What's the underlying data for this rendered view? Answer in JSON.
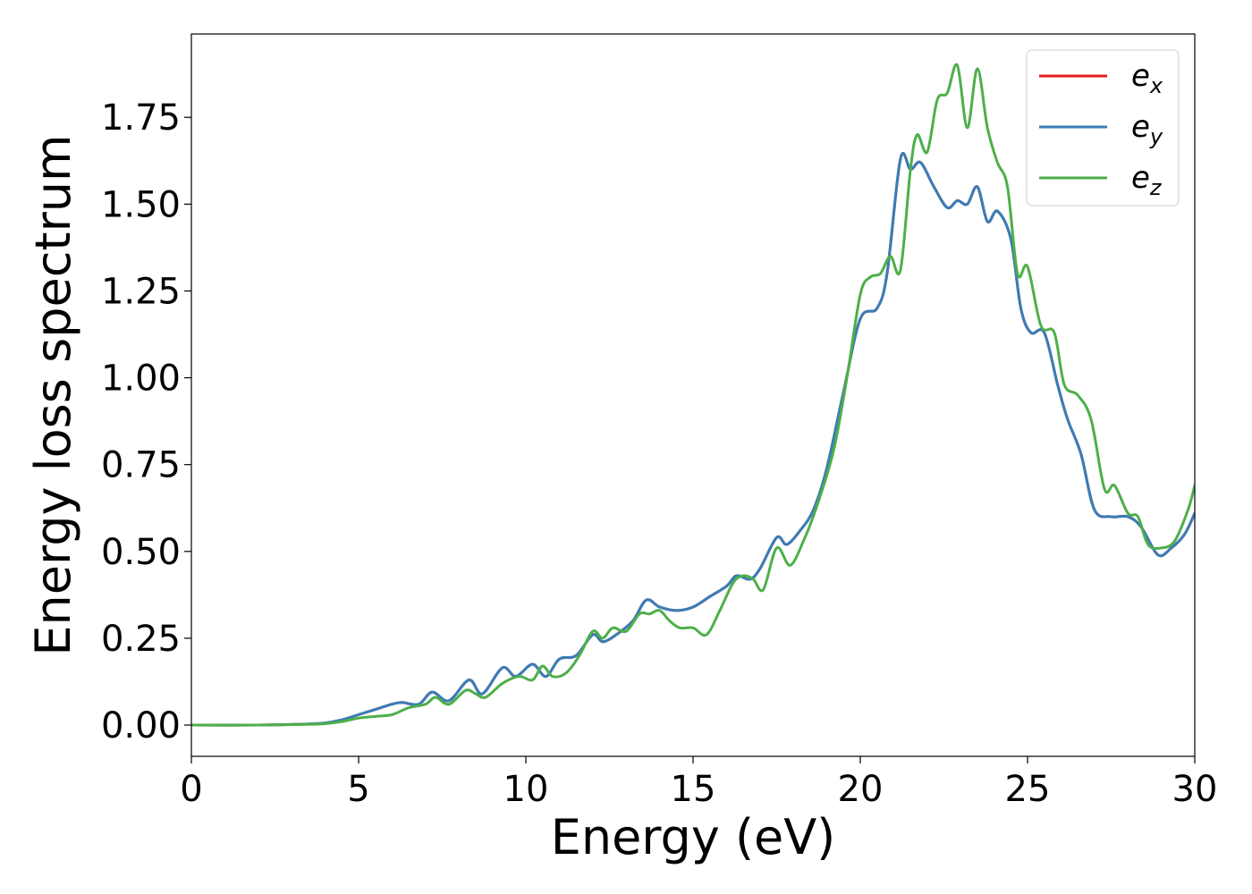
{
  "chart_data": {
    "type": "line",
    "xlabel": "Energy (eV)",
    "ylabel": "Energy loss spectrum",
    "xlim": [
      0,
      30
    ],
    "ylim": [
      -0.09,
      1.99
    ],
    "xticks": [
      0,
      5,
      10,
      15,
      20,
      25,
      30
    ],
    "xtick_labels": [
      "0",
      "5",
      "10",
      "15",
      "20",
      "25",
      "30"
    ],
    "yticks": [
      0.0,
      0.25,
      0.5,
      0.75,
      1.0,
      1.25,
      1.5,
      1.75
    ],
    "ytick_labels": [
      "0.00",
      "0.25",
      "0.50",
      "0.75",
      "1.00",
      "1.25",
      "1.50",
      "1.75"
    ],
    "grid": false,
    "legend_position": "top-right",
    "series": [
      {
        "name": "e",
        "subscript": "x",
        "color": "#e41a1c",
        "x": [
          0,
          2,
          3.5,
          4,
          4.5,
          5,
          5.5,
          6,
          6.3,
          6.8,
          7.2,
          7.7,
          8.3,
          8.7,
          9.3,
          9.7,
          10.2,
          10.6,
          11,
          11.5,
          12,
          12.3,
          12.7,
          13.2,
          13.6,
          14,
          14.5,
          15,
          15.5,
          16,
          16.3,
          16.7,
          17,
          17.5,
          17.8,
          18.2,
          18.6,
          19,
          19.5,
          20,
          20.5,
          20.8,
          21.2,
          21.5,
          21.8,
          22.2,
          22.6,
          22.9,
          23.2,
          23.5,
          23.8,
          24.1,
          24.5,
          24.8,
          25.1,
          25.5,
          25.9,
          26.2,
          26.6,
          27,
          27.5,
          28,
          28.4,
          28.9,
          29.3,
          29.7,
          30
        ],
        "values": [
          0.0,
          0.0,
          0.003,
          0.006,
          0.015,
          0.03,
          0.045,
          0.06,
          0.065,
          0.06,
          0.095,
          0.07,
          0.13,
          0.09,
          0.165,
          0.14,
          0.175,
          0.14,
          0.19,
          0.2,
          0.26,
          0.24,
          0.26,
          0.3,
          0.36,
          0.34,
          0.33,
          0.34,
          0.37,
          0.4,
          0.43,
          0.42,
          0.45,
          0.54,
          0.52,
          0.56,
          0.62,
          0.74,
          0.96,
          1.17,
          1.2,
          1.3,
          1.63,
          1.6,
          1.62,
          1.55,
          1.49,
          1.51,
          1.5,
          1.55,
          1.45,
          1.48,
          1.4,
          1.2,
          1.13,
          1.13,
          0.98,
          0.88,
          0.78,
          0.62,
          0.6,
          0.6,
          0.57,
          0.49,
          0.51,
          0.55,
          0.61
        ]
      },
      {
        "name": "e",
        "subscript": "y",
        "color": "#377eb8",
        "x": [
          0,
          2,
          3.5,
          4,
          4.5,
          5,
          5.5,
          6,
          6.3,
          6.8,
          7.2,
          7.7,
          8.3,
          8.7,
          9.3,
          9.7,
          10.2,
          10.6,
          11,
          11.5,
          12,
          12.3,
          12.7,
          13.2,
          13.6,
          14,
          14.5,
          15,
          15.5,
          16,
          16.3,
          16.7,
          17,
          17.5,
          17.8,
          18.2,
          18.6,
          19,
          19.5,
          20,
          20.5,
          20.8,
          21.2,
          21.5,
          21.8,
          22.2,
          22.6,
          22.9,
          23.2,
          23.5,
          23.8,
          24.1,
          24.5,
          24.8,
          25.1,
          25.5,
          25.9,
          26.2,
          26.6,
          27,
          27.5,
          28,
          28.4,
          28.9,
          29.3,
          29.7,
          30
        ],
        "values": [
          0.0,
          0.0,
          0.003,
          0.006,
          0.015,
          0.03,
          0.045,
          0.06,
          0.065,
          0.06,
          0.095,
          0.07,
          0.13,
          0.09,
          0.165,
          0.14,
          0.175,
          0.14,
          0.19,
          0.2,
          0.26,
          0.24,
          0.26,
          0.3,
          0.36,
          0.34,
          0.33,
          0.34,
          0.37,
          0.4,
          0.43,
          0.42,
          0.45,
          0.54,
          0.52,
          0.56,
          0.62,
          0.74,
          0.96,
          1.17,
          1.2,
          1.3,
          1.63,
          1.6,
          1.62,
          1.55,
          1.49,
          1.51,
          1.5,
          1.55,
          1.45,
          1.48,
          1.4,
          1.2,
          1.13,
          1.13,
          0.98,
          0.88,
          0.78,
          0.62,
          0.6,
          0.6,
          0.57,
          0.49,
          0.51,
          0.55,
          0.61
        ]
      },
      {
        "name": "e",
        "subscript": "z",
        "color": "#4daf4a",
        "x": [
          0,
          2,
          3.5,
          4,
          4.5,
          5,
          5.5,
          6,
          6.5,
          7,
          7.3,
          7.7,
          8.2,
          8.5,
          8.8,
          9.3,
          9.8,
          10.2,
          10.5,
          10.8,
          11.2,
          11.6,
          12,
          12.3,
          12.6,
          13,
          13.4,
          13.7,
          14,
          14.3,
          14.6,
          15,
          15.4,
          15.8,
          16.2,
          16.5,
          16.8,
          17.1,
          17.5,
          17.9,
          18.3,
          18.7,
          19.2,
          19.6,
          20,
          20.3,
          20.6,
          20.9,
          21.2,
          21.5,
          21.7,
          22,
          22.3,
          22.6,
          22.9,
          23.2,
          23.5,
          23.8,
          24.1,
          24.4,
          24.7,
          25,
          25.4,
          25.8,
          26.1,
          26.5,
          26.9,
          27.3,
          27.6,
          28,
          28.3,
          28.6,
          29,
          29.4,
          29.8,
          30
        ],
        "values": [
          0.0,
          0.0,
          0.002,
          0.004,
          0.01,
          0.02,
          0.025,
          0.03,
          0.05,
          0.06,
          0.08,
          0.06,
          0.1,
          0.09,
          0.08,
          0.12,
          0.14,
          0.13,
          0.17,
          0.14,
          0.15,
          0.2,
          0.27,
          0.25,
          0.28,
          0.27,
          0.32,
          0.32,
          0.33,
          0.3,
          0.28,
          0.28,
          0.26,
          0.33,
          0.41,
          0.43,
          0.42,
          0.39,
          0.51,
          0.46,
          0.53,
          0.63,
          0.79,
          1.0,
          1.24,
          1.29,
          1.3,
          1.35,
          1.31,
          1.6,
          1.7,
          1.65,
          1.8,
          1.82,
          1.9,
          1.72,
          1.89,
          1.72,
          1.62,
          1.55,
          1.3,
          1.32,
          1.15,
          1.13,
          0.98,
          0.95,
          0.88,
          0.68,
          0.69,
          0.61,
          0.6,
          0.52,
          0.51,
          0.53,
          0.62,
          0.69
        ]
      }
    ]
  }
}
